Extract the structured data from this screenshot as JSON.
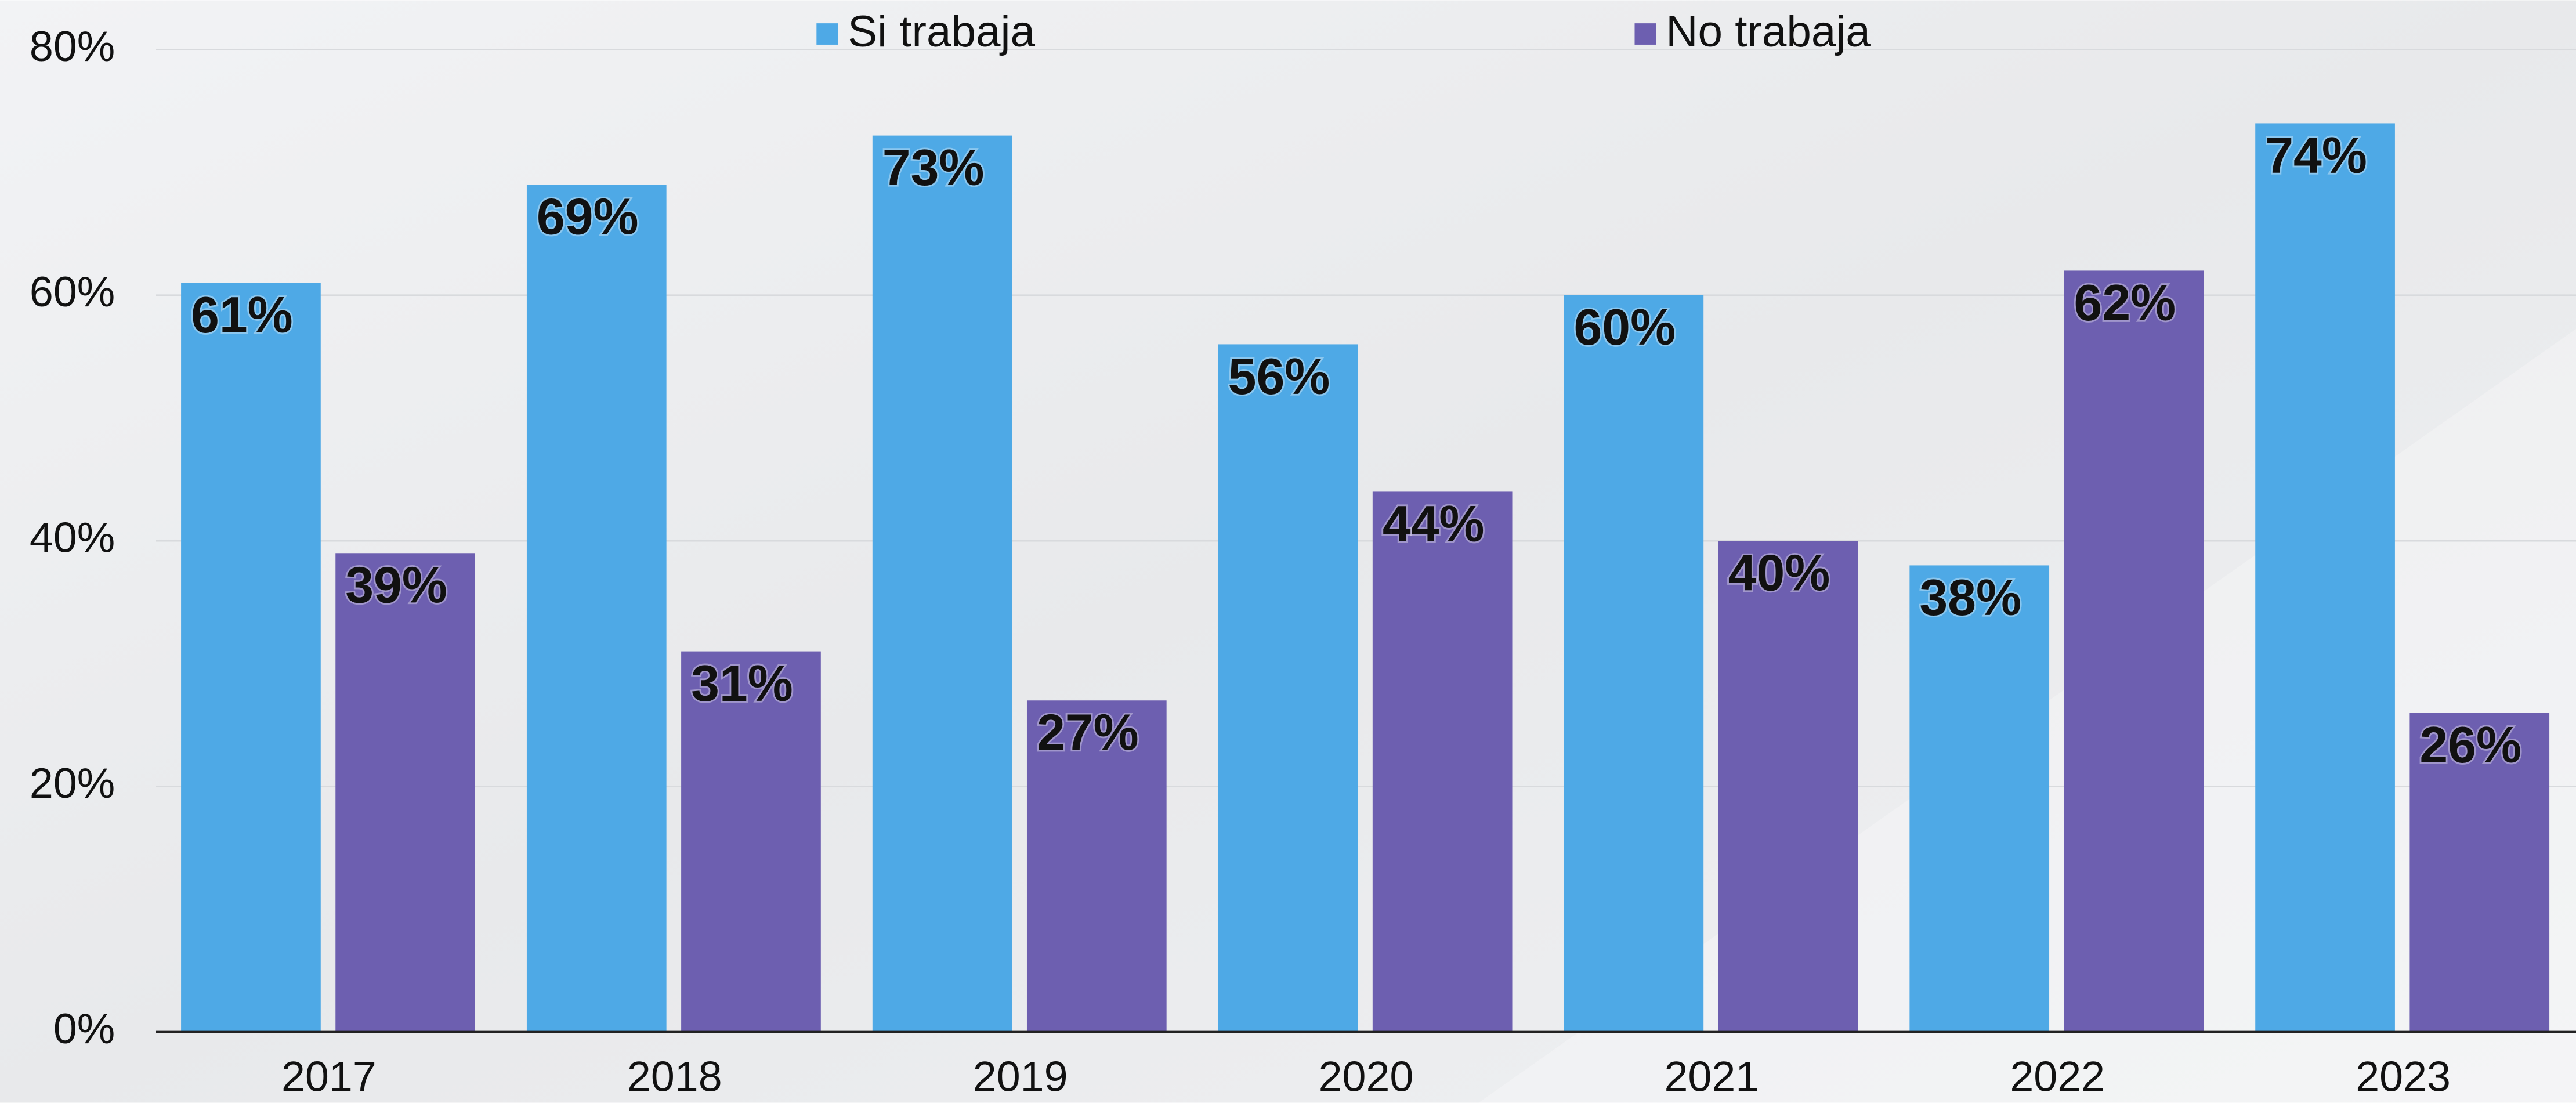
{
  "chart_data": {
    "type": "bar",
    "categories": [
      "2017",
      "2018",
      "2019",
      "2020",
      "2021",
      "2022",
      "2023"
    ],
    "series": [
      {
        "name": "Si trabaja",
        "color": "#4ea9e6",
        "values": [
          61,
          69,
          73,
          56,
          60,
          38,
          74
        ],
        "value_labels": [
          "61%",
          "69%",
          "73%",
          "56%",
          "60%",
          "38%",
          "74%"
        ]
      },
      {
        "name": "No trabaja",
        "color": "#6d5fb0",
        "values": [
          39,
          31,
          27,
          44,
          40,
          62,
          26
        ],
        "value_labels": [
          "39%",
          "31%",
          "27%",
          "44%",
          "40%",
          "62%",
          "26%"
        ]
      }
    ],
    "ylim": [
      0,
      80
    ],
    "yticks": [
      {
        "value": 0,
        "label": "0%"
      },
      {
        "value": 20,
        "label": "20%"
      },
      {
        "value": 40,
        "label": "40%"
      },
      {
        "value": 60,
        "label": "60%"
      },
      {
        "value": 80,
        "label": "80%"
      }
    ],
    "grid": true,
    "legend": "top"
  }
}
